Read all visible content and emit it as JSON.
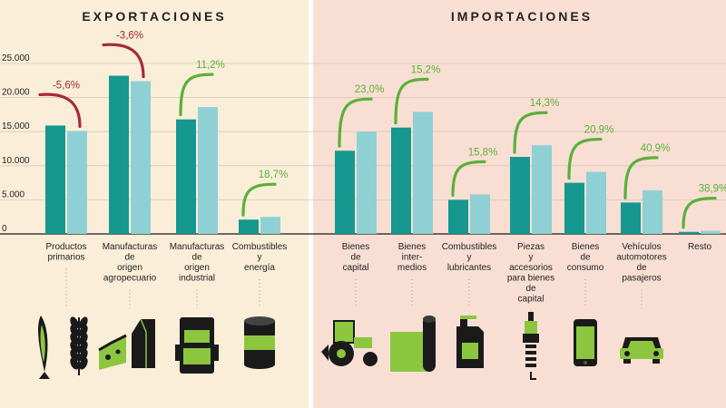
{
  "sections": {
    "export_title": "EXPORTACIONES",
    "import_title": "IMPORTACIONES"
  },
  "colors": {
    "bg_export": "#fbeed8",
    "bg_import": "#f9dfd3",
    "bar_dark": "#16978f",
    "bar_light": "#8fd0d4",
    "up": "#5ab03a",
    "down": "#a8293a",
    "icon_black": "#1a1a1a",
    "icon_green": "#8cc63f"
  },
  "chart_data": {
    "type": "bar",
    "ylim": [
      0,
      25000
    ],
    "yticks": [
      "25.000",
      "20.000",
      "15.000",
      "10.000",
      "5.000",
      "0"
    ],
    "ytick_values": [
      25000,
      20000,
      15000,
      10000,
      5000,
      0
    ],
    "groups": [
      {
        "section": "export",
        "label": [
          "Productos",
          "primarios"
        ],
        "values": [
          15900,
          15100
        ],
        "change": "-5,6%",
        "direction": "down",
        "icon": "fish-wheat-icon"
      },
      {
        "section": "export",
        "label": [
          "Manufacturas",
          "de",
          "origen",
          "agropecuario"
        ],
        "values": [
          23200,
          22400
        ],
        "change": "-3,6%",
        "direction": "down",
        "icon": "cheese-milk-icon"
      },
      {
        "section": "export",
        "label": [
          "Manufacturas",
          "de",
          "origen",
          "industrial"
        ],
        "values": [
          16800,
          18600
        ],
        "change": "11,2%",
        "direction": "up",
        "icon": "truck-icon"
      },
      {
        "section": "export",
        "label": [
          "Combustibles",
          "y",
          "energía"
        ],
        "values": [
          2100,
          2500
        ],
        "change": "18,7%",
        "direction": "up",
        "icon": "barrel-icon"
      },
      {
        "section": "import",
        "label": [
          "Bienes",
          "de",
          "capital"
        ],
        "values": [
          12200,
          15000
        ],
        "change": "23,0%",
        "direction": "up",
        "icon": "tractor-icon"
      },
      {
        "section": "import",
        "label": [
          "Bienes",
          "inter-",
          "medios"
        ],
        "values": [
          15600,
          17900
        ],
        "change": "15,2%",
        "direction": "up",
        "icon": "roll-icon"
      },
      {
        "section": "import",
        "label": [
          "Combustibles",
          "y",
          "lubricantes"
        ],
        "values": [
          5000,
          5800
        ],
        "change": "15,8%",
        "direction": "up",
        "icon": "jerrycan-icon"
      },
      {
        "section": "import",
        "label": [
          "Piezas",
          "y",
          "accesorios",
          "para bienes",
          "de",
          "capital"
        ],
        "values": [
          11300,
          13000
        ],
        "change": "14,3%",
        "direction": "up",
        "icon": "spark-plug-icon"
      },
      {
        "section": "import",
        "label": [
          "Bienes",
          "de",
          "consumo"
        ],
        "values": [
          7500,
          9100
        ],
        "change": "20,9%",
        "direction": "up",
        "icon": "phone-icon"
      },
      {
        "section": "import",
        "label": [
          "Vehículos",
          "automotores",
          "de",
          "pasajeros"
        ],
        "values": [
          4600,
          6400
        ],
        "change": "40,9%",
        "direction": "up",
        "icon": "car-icon"
      },
      {
        "section": "import",
        "label": [
          "Resto"
        ],
        "values": [
          300,
          450
        ],
        "change": "38,9%",
        "direction": "up",
        "icon": ""
      }
    ]
  }
}
